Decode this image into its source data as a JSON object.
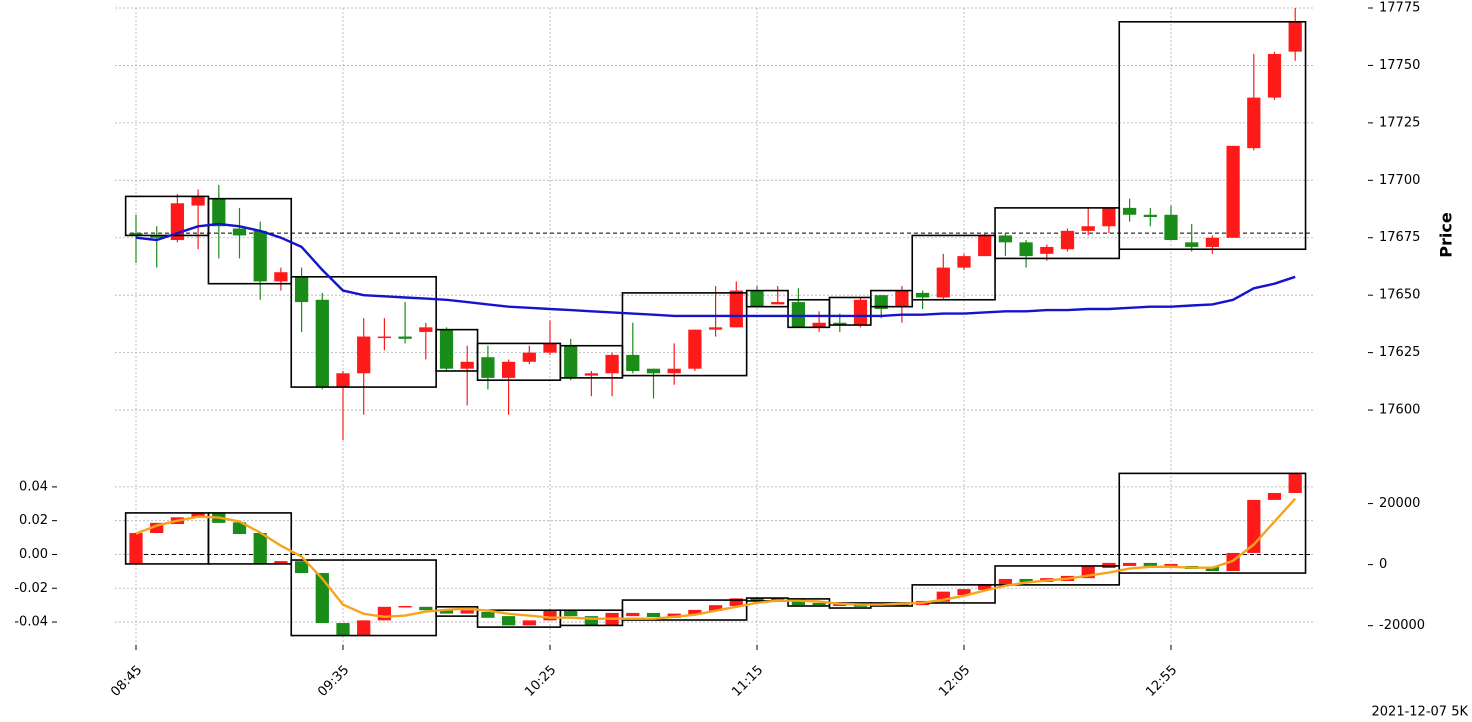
{
  "footer": "2021-12-07 5K",
  "chart_data": [
    {
      "type": "candlestick",
      "ylabel": "Price",
      "categories": [
        "08:45",
        "08:50",
        "08:55",
        "09:00",
        "09:05",
        "09:10",
        "09:15",
        "09:20",
        "09:25",
        "09:30",
        "09:35",
        "09:40",
        "09:45",
        "09:50",
        "09:55",
        "10:00",
        "10:05",
        "10:10",
        "10:15",
        "10:20",
        "10:25",
        "10:30",
        "10:35",
        "10:40",
        "10:45",
        "10:50",
        "10:55",
        "11:00",
        "11:05",
        "11:10",
        "11:15",
        "11:20",
        "11:25",
        "11:30",
        "11:35",
        "11:40",
        "11:45",
        "11:50",
        "11:55",
        "12:00",
        "12:05",
        "12:10",
        "12:15",
        "12:20",
        "12:25",
        "12:30",
        "12:35",
        "12:40",
        "12:45",
        "12:50",
        "12:55",
        "13:00",
        "13:05",
        "13:10",
        "13:15",
        "13:20",
        "13:25"
      ],
      "xticks": [
        "08:45",
        "09:35",
        "10:25",
        "11:15",
        "12:05",
        "12:55"
      ],
      "open": [
        17677,
        17676,
        17674,
        17689,
        17692,
        17679,
        17678,
        17656,
        17658,
        17648,
        17610,
        17616,
        17632,
        17632,
        17634,
        17635,
        17618,
        17623,
        17614,
        17621,
        17625,
        17628,
        17615,
        17616,
        17624,
        17618,
        17616,
        17618,
        17635,
        17636,
        17652,
        17646,
        17647,
        17636,
        17638,
        17637,
        17650,
        17645,
        17651,
        17649,
        17662,
        17667,
        17676,
        17673,
        17668,
        17670,
        17678,
        17680,
        17688,
        17685,
        17685,
        17673,
        17671,
        17675,
        17714,
        17736,
        17756
      ],
      "high": [
        17685,
        17680,
        17694,
        17696,
        17698,
        17688,
        17682,
        17662,
        17662,
        17651,
        17617,
        17640,
        17640,
        17647,
        17638,
        17636,
        17628,
        17628,
        17622,
        17628,
        17639,
        17631,
        17617,
        17625,
        17638,
        17618,
        17629,
        17635,
        17654,
        17656,
        17654,
        17654,
        17653,
        17643,
        17642,
        17649,
        17650,
        17654,
        17652,
        17668,
        17668,
        17677,
        17677,
        17674,
        17672,
        17679,
        17688,
        17688,
        17692,
        17688,
        17689,
        17681,
        17676,
        17715,
        17755,
        17756,
        17775
      ],
      "low": [
        17664,
        17662,
        17673,
        17670,
        17666,
        17666,
        17648,
        17652,
        17634,
        17609,
        17587,
        17598,
        17626,
        17629,
        17622,
        17617,
        17602,
        17609,
        17598,
        17620,
        17624,
        17613,
        17606,
        17606,
        17616,
        17605,
        17611,
        17617,
        17632,
        17636,
        17645,
        17646,
        17636,
        17634,
        17634,
        17636,
        17640,
        17638,
        17644,
        17648,
        17661,
        17667,
        17667,
        17662,
        17665,
        17669,
        17676,
        17677,
        17682,
        17680,
        17674,
        17669,
        17668,
        17675,
        17713,
        17735,
        17752
      ],
      "close": [
        17676,
        17675,
        17690,
        17693,
        17680,
        17676,
        17656,
        17660,
        17647,
        17610,
        17616,
        17632,
        17632,
        17631,
        17636,
        17618,
        17621,
        17614,
        17621,
        17625,
        17629,
        17614,
        17616,
        17624,
        17617,
        17616,
        17618,
        17635,
        17636,
        17652,
        17645,
        17647,
        17636,
        17638,
        17637,
        17648,
        17644,
        17652,
        17649,
        17662,
        17667,
        17676,
        17673,
        17667,
        17671,
        17678,
        17680,
        17688,
        17685,
        17684,
        17674,
        17671,
        17675,
        17715,
        17736,
        17755,
        17769
      ],
      "up_color": "#ff1a1a",
      "down_color": "#1a8c1a",
      "series": [
        {
          "color": "#1414cc",
          "values": [
            17675,
            17674,
            17677,
            17680,
            17681,
            17680,
            17678,
            17675,
            17671,
            17661,
            17652,
            17650,
            17649.5,
            17649,
            17648.5,
            17648,
            17647,
            17646,
            17645,
            17644.5,
            17644,
            17643.5,
            17643,
            17642.5,
            17642,
            17641.5,
            17641,
            17641,
            17641,
            17641,
            17641,
            17641,
            17641,
            17641,
            17641,
            17641,
            17641,
            17641.5,
            17641.5,
            17642,
            17642,
            17642.5,
            17643,
            17643,
            17643.5,
            17643.5,
            17644,
            17644,
            17644.5,
            17645,
            17645,
            17645.5,
            17646,
            17648,
            17653,
            17655,
            17658
          ]
        }
      ],
      "boxes": [
        {
          "start": 0,
          "end": 3,
          "high": 17693,
          "low": 17676
        },
        {
          "start": 4,
          "end": 7,
          "high": 17692,
          "low": 17655
        },
        {
          "start": 8,
          "end": 14,
          "high": 17658,
          "low": 17610
        },
        {
          "start": 15,
          "end": 16,
          "high": 17635,
          "low": 17617
        },
        {
          "start": 17,
          "end": 20,
          "high": 17629,
          "low": 17613
        },
        {
          "start": 21,
          "end": 23,
          "high": 17628,
          "low": 17614
        },
        {
          "start": 24,
          "end": 29,
          "high": 17651,
          "low": 17615
        },
        {
          "start": 30,
          "end": 31,
          "high": 17652,
          "low": 17645
        },
        {
          "start": 32,
          "end": 33,
          "high": 17648,
          "low": 17636
        },
        {
          "start": 34,
          "end": 35,
          "high": 17649,
          "low": 17637
        },
        {
          "start": 36,
          "end": 37,
          "high": 17652,
          "low": 17645
        },
        {
          "start": 38,
          "end": 41,
          "high": 17676,
          "low": 17648
        },
        {
          "start": 42,
          "end": 47,
          "high": 17688,
          "low": 17666
        },
        {
          "start": 48,
          "end": 56,
          "high": 17769,
          "low": 17670
        }
      ],
      "level": 17677,
      "ylim": [
        17580,
        17775
      ],
      "yticks": [
        17600,
        17625,
        17650,
        17675,
        17700,
        17725,
        17750,
        17775
      ],
      "grid": true
    },
    {
      "type": "candlestick",
      "open": [
        -0.0056,
        0.0127,
        0.018,
        0.0216,
        0.0246,
        0.019,
        0.0127,
        -0.0056,
        -0.004,
        -0.011,
        -0.0406,
        -0.048,
        -0.039,
        -0.031,
        -0.031,
        -0.033,
        -0.035,
        -0.034,
        -0.0365,
        -0.042,
        -0.039,
        -0.033,
        -0.0365,
        -0.042,
        -0.0365,
        -0.0346,
        -0.0375,
        -0.0358,
        -0.0334,
        -0.0305,
        -0.0258,
        -0.027,
        -0.026,
        -0.0287,
        -0.0305,
        -0.029,
        -0.029,
        -0.0293,
        -0.03,
        -0.028,
        -0.024,
        -0.021,
        -0.018,
        -0.0145,
        -0.0163,
        -0.0157,
        -0.014,
        -0.008,
        -0.0068,
        -0.005,
        -0.0068,
        -0.0068,
        -0.0074,
        -0.0098,
        0.0009,
        0.0323,
        0.0364
      ],
      "close": [
        0.0127,
        0.0187,
        0.022,
        0.0246,
        0.0187,
        0.0121,
        -0.0056,
        -0.0039,
        -0.011,
        -0.0406,
        -0.048,
        -0.039,
        -0.031,
        -0.0305,
        -0.033,
        -0.035,
        -0.033,
        -0.0375,
        -0.042,
        -0.039,
        -0.033,
        -0.0365,
        -0.042,
        -0.0346,
        -0.0346,
        -0.037,
        -0.035,
        -0.0328,
        -0.03,
        -0.026,
        -0.0275,
        -0.0258,
        -0.03,
        -0.03,
        -0.0295,
        -0.031,
        -0.0305,
        -0.0305,
        -0.0275,
        -0.022,
        -0.0205,
        -0.0175,
        -0.0145,
        -0.0163,
        -0.014,
        -0.0127,
        -0.0068,
        -0.005,
        -0.005,
        -0.0068,
        -0.0056,
        -0.0086,
        -0.0098,
        0.0009,
        0.0323,
        0.0364,
        0.048
      ],
      "up_color": "#ff1a1a",
      "down_color": "#1a8c1a",
      "series": [
        {
          "color": "#f5a41c",
          "axis": "y2",
          "values": [
            10170,
            12800,
            14400,
            15700,
            15400,
            14100,
            10500,
            6200,
            2600,
            -4600,
            -13100,
            -16100,
            -17100,
            -16700,
            -15400,
            -14800,
            -14400,
            -15100,
            -16100,
            -16700,
            -17400,
            -17400,
            -17700,
            -17700,
            -17700,
            -17700,
            -17100,
            -16400,
            -15100,
            -13800,
            -12500,
            -11800,
            -11800,
            -12100,
            -12800,
            -13100,
            -13100,
            -12800,
            -12500,
            -11500,
            -10200,
            -8500,
            -6900,
            -5900,
            -5200,
            -4600,
            -3600,
            -2600,
            -1300,
            -700,
            -700,
            -1000,
            -1000,
            1300,
            6600,
            14100,
            21600
          ]
        }
      ],
      "boxes": [
        {
          "start": 0,
          "end": 3,
          "high": 0.0246,
          "low": -0.0056
        },
        {
          "start": 4,
          "end": 7,
          "high": 0.0246,
          "low": -0.0056
        },
        {
          "start": 8,
          "end": 14,
          "high": -0.0033,
          "low": -0.048
        },
        {
          "start": 15,
          "end": 16,
          "high": -0.031,
          "low": -0.0365
        },
        {
          "start": 17,
          "end": 20,
          "high": -0.033,
          "low": -0.043
        },
        {
          "start": 21,
          "end": 23,
          "high": -0.033,
          "low": -0.042
        },
        {
          "start": 24,
          "end": 29,
          "high": -0.027,
          "low": -0.0388
        },
        {
          "start": 30,
          "end": 31,
          "high": -0.0258,
          "low": -0.0275
        },
        {
          "start": 32,
          "end": 33,
          "high": -0.0263,
          "low": -0.0305
        },
        {
          "start": 34,
          "end": 35,
          "high": -0.0287,
          "low": -0.0317
        },
        {
          "start": 36,
          "end": 37,
          "high": -0.0287,
          "low": -0.0305
        },
        {
          "start": 38,
          "end": 41,
          "high": -0.018,
          "low": -0.0287
        },
        {
          "start": 42,
          "end": 47,
          "high": -0.0068,
          "low": -0.018
        },
        {
          "start": 48,
          "end": 56,
          "high": 0.048,
          "low": -0.011
        }
      ],
      "level": 0,
      "ylim": [
        -0.053,
        0.05
      ],
      "yticks": [
        0.04,
        0.02,
        {
          "value": 0,
          "label": "0.00"
        },
        -0.02,
        -0.04
      ],
      "y2lim": [
        -26000,
        31000
      ],
      "y2ticks": [
        20000,
        0,
        -20000
      ],
      "grid": true
    }
  ]
}
